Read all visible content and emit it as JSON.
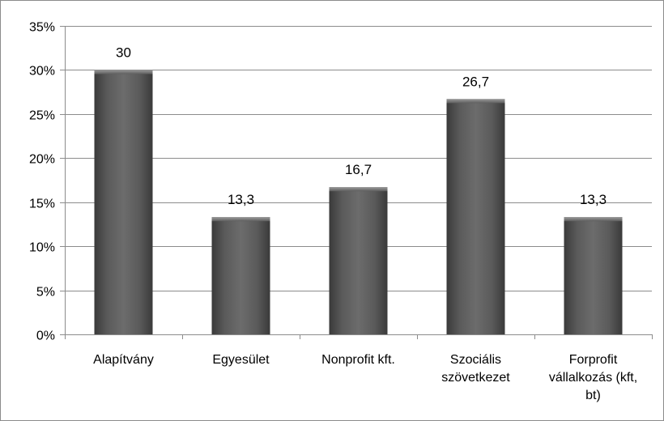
{
  "chart_data": {
    "type": "bar",
    "categories": [
      [
        "Alapítvány"
      ],
      [
        "Egyesület"
      ],
      [
        "Nonprofit kft."
      ],
      [
        "Szociális",
        "szövetkezet"
      ],
      [
        "Forprofit",
        "vállalkozás (kft,",
        "bt)"
      ]
    ],
    "values": [
      30,
      13.3,
      16.7,
      26.7,
      13.3
    ],
    "data_labels": [
      "30",
      "13,3",
      "16,7",
      "26,7",
      "13,3"
    ],
    "ylim": [
      0,
      35
    ],
    "yticks": [
      0,
      5,
      10,
      15,
      20,
      25,
      30,
      35
    ],
    "ytick_labels": [
      "0%",
      "5%",
      "10%",
      "15%",
      "20%",
      "25%",
      "30%",
      "35%"
    ],
    "grid": true,
    "legend": "none",
    "colors": {
      "bar_dark": "#3c3c3c",
      "bar_mid": "#6a6a6a",
      "bar_light": "#8a8a8a",
      "grid": "#8c8c8c",
      "axis": "#8c8c8c"
    }
  }
}
